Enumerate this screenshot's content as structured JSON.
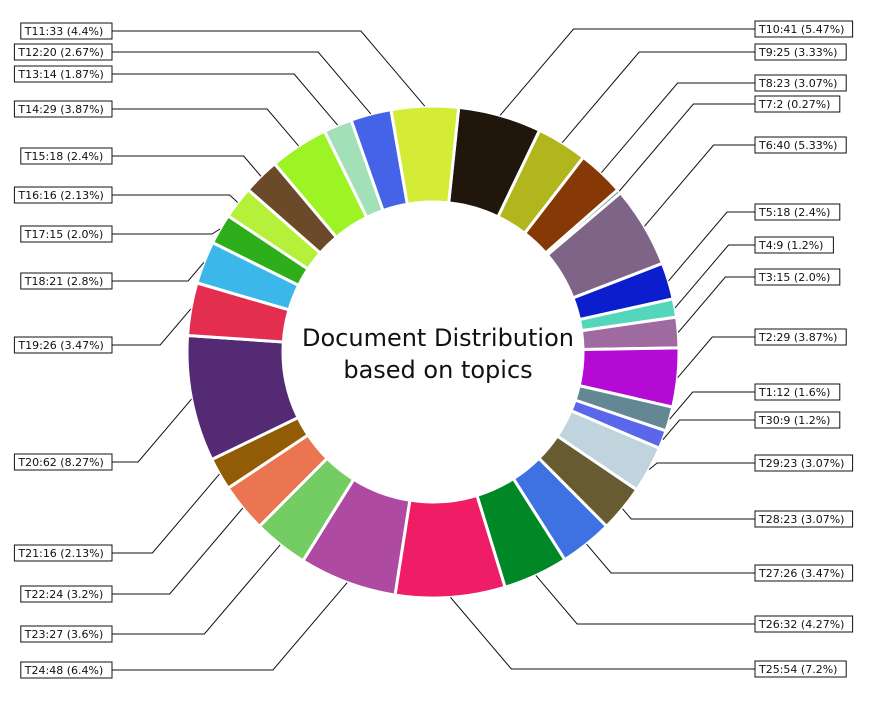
{
  "chart_data": {
    "type": "pie",
    "style": "donut",
    "center_text": [
      "Document Distribution",
      "based on topics"
    ],
    "slices": [
      {
        "label": "T10:41 (5.47%)",
        "topic": "T10",
        "count": 41,
        "percent": 5.47,
        "color": "#21160c"
      },
      {
        "label": "T9:25 (3.33%)",
        "topic": "T9",
        "count": 25,
        "percent": 3.33,
        "color": "#b0b61b"
      },
      {
        "label": "T8:23 (3.07%)",
        "topic": "T8",
        "count": 23,
        "percent": 3.07,
        "color": "#863806"
      },
      {
        "label": "T7:2 (0.27%)",
        "topic": "T7",
        "count": 2,
        "percent": 0.27,
        "color": "#5a8c8c"
      },
      {
        "label": "T6:40 (5.33%)",
        "topic": "T6",
        "count": 40,
        "percent": 5.33,
        "color": "#7e6587"
      },
      {
        "label": "T5:18 (2.4%)",
        "topic": "T5",
        "count": 18,
        "percent": 2.4,
        "color": "#0b1dcc"
      },
      {
        "label": "T4:9 (1.2%)",
        "topic": "T4",
        "count": 9,
        "percent": 1.2,
        "color": "#54d6bc"
      },
      {
        "label": "T3:15 (2.0%)",
        "topic": "T3",
        "count": 15,
        "percent": 2.0,
        "color": "#9e6aa0"
      },
      {
        "label": "T2:29 (3.87%)",
        "topic": "T2",
        "count": 29,
        "percent": 3.87,
        "color": "#b50ad3"
      },
      {
        "label": "T1:12 (1.6%)",
        "topic": "T1",
        "count": 12,
        "percent": 1.6,
        "color": "#638894"
      },
      {
        "label": "T30:9 (1.2%)",
        "topic": "T30",
        "count": 9,
        "percent": 1.2,
        "color": "#5a67eb"
      },
      {
        "label": "T29:23 (3.07%)",
        "topic": "T29",
        "count": 23,
        "percent": 3.07,
        "color": "#c0d4de"
      },
      {
        "label": "T28:23 (3.07%)",
        "topic": "T28",
        "count": 23,
        "percent": 3.07,
        "color": "#675b32"
      },
      {
        "label": "T27:26 (3.47%)",
        "topic": "T27",
        "count": 26,
        "percent": 3.47,
        "color": "#3e72e3"
      },
      {
        "label": "T26:32 (4.27%)",
        "topic": "T26",
        "count": 32,
        "percent": 4.27,
        "color": "#008826"
      },
      {
        "label": "T25:54 (7.2%)",
        "topic": "T25",
        "count": 54,
        "percent": 7.2,
        "color": "#ef1c66"
      },
      {
        "label": "T24:48 (6.4%)",
        "topic": "T24",
        "count": 48,
        "percent": 6.4,
        "color": "#af4aa2"
      },
      {
        "label": "T23:27 (3.6%)",
        "topic": "T23",
        "count": 27,
        "percent": 3.6,
        "color": "#74cd63"
      },
      {
        "label": "T22:24 (3.2%)",
        "topic": "T22",
        "count": 24,
        "percent": 3.2,
        "color": "#ea7550"
      },
      {
        "label": "T21:16 (2.13%)",
        "topic": "T21",
        "count": 16,
        "percent": 2.13,
        "color": "#925c07"
      },
      {
        "label": "T20:62 (8.27%)",
        "topic": "T20",
        "count": 62,
        "percent": 8.27,
        "color": "#532a73"
      },
      {
        "label": "T19:26 (3.47%)",
        "topic": "T19",
        "count": 26,
        "percent": 3.47,
        "color": "#e32e50"
      },
      {
        "label": "T18:21 (2.8%)",
        "topic": "T18",
        "count": 21,
        "percent": 2.8,
        "color": "#3bb7ea"
      },
      {
        "label": "T17:15 (2.0%)",
        "topic": "T17",
        "count": 15,
        "percent": 2.0,
        "color": "#2fae1b"
      },
      {
        "label": "T16:16 (2.13%)",
        "topic": "T16",
        "count": 16,
        "percent": 2.13,
        "color": "#b5f03a"
      },
      {
        "label": "T15:18 (2.4%)",
        "topic": "T15",
        "count": 18,
        "percent": 2.4,
        "color": "#6a4a28"
      },
      {
        "label": "T14:29 (3.87%)",
        "topic": "T14",
        "count": 29,
        "percent": 3.87,
        "color": "#9cf424"
      },
      {
        "label": "T13:14 (1.87%)",
        "topic": "T13",
        "count": 14,
        "percent": 1.87,
        "color": "#a2e0b8"
      },
      {
        "label": "T12:20 (2.67%)",
        "topic": "T12",
        "count": 20,
        "percent": 2.67,
        "color": "#4463e6"
      },
      {
        "label": "T11:33 (4.4%)",
        "topic": "T11",
        "count": 33,
        "percent": 4.4,
        "color": "#d4ec35"
      }
    ]
  }
}
